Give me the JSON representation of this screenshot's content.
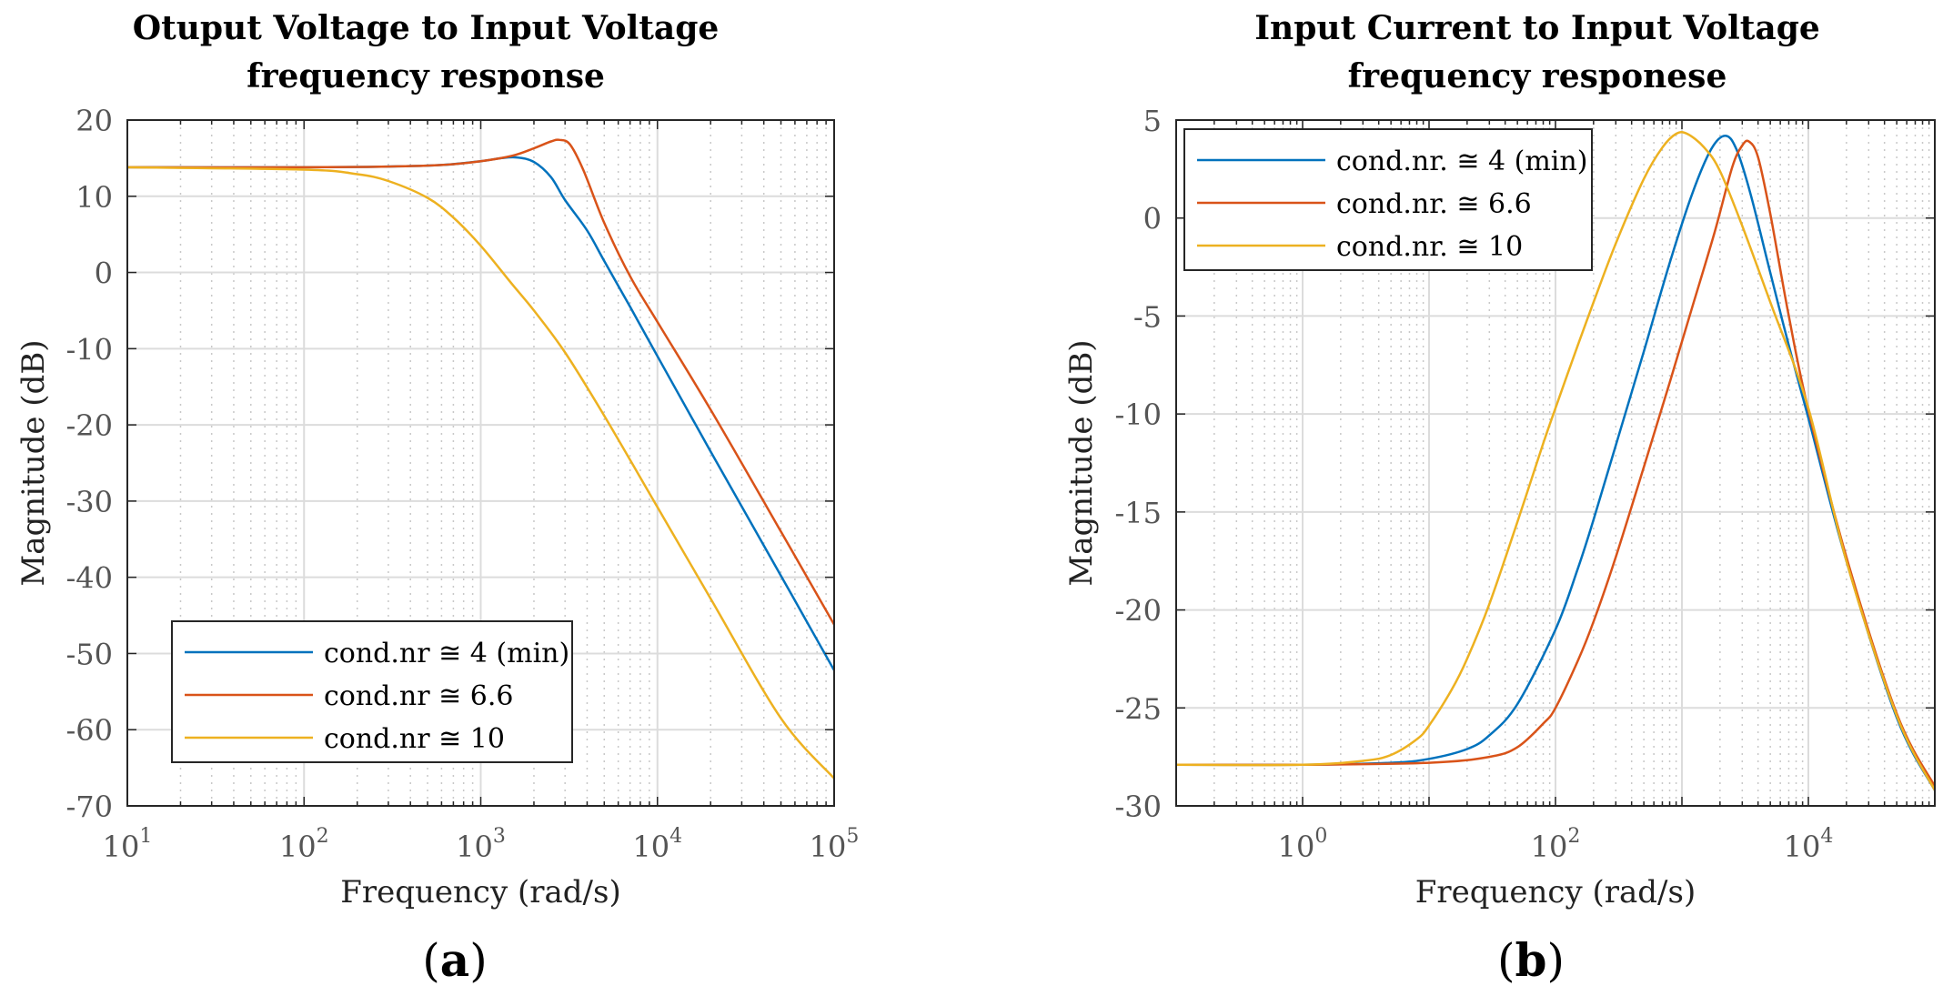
{
  "chart_data": [
    {
      "type": "line",
      "panel": "a",
      "subcaption_letter": "a",
      "title_lines": [
        "Otuput Voltage to Input Voltage",
        "frequency response"
      ],
      "xlabel": "Frequency  (rad/s)",
      "ylabel": "Magnitude (dB)",
      "xscale": "log",
      "xlim": [
        10,
        100000
      ],
      "ylim": [
        -70,
        20
      ],
      "xticks": [
        {
          "value": 10,
          "base": "10",
          "exp": "1"
        },
        {
          "value": 100,
          "base": "10",
          "exp": "2"
        },
        {
          "value": 1000,
          "base": "10",
          "exp": "3"
        },
        {
          "value": 10000,
          "base": "10",
          "exp": "4"
        },
        {
          "value": 100000,
          "base": "10",
          "exp": "5"
        }
      ],
      "yticks": [
        {
          "value": 20,
          "label": "20"
        },
        {
          "value": 10,
          "label": "10"
        },
        {
          "value": 0,
          "label": "0"
        },
        {
          "value": -10,
          "label": "-10"
        },
        {
          "value": -20,
          "label": "-20"
        },
        {
          "value": -30,
          "label": "-30"
        },
        {
          "value": -40,
          "label": "-40"
        },
        {
          "value": -50,
          "label": "-50"
        },
        {
          "value": -60,
          "label": "-60"
        },
        {
          "value": -70,
          "label": "-70"
        }
      ],
      "grid": true,
      "legend_position": "bottom-left",
      "series": [
        {
          "name": "cond.nr ≅ 4 (min)",
          "color": "#0072BD",
          "x": [
            10,
            100,
            300,
            600,
            1000,
            1300,
            1600,
            2000,
            2500,
            3000,
            4000,
            5000,
            7000,
            10000,
            20000,
            50000,
            100000
          ],
          "y": [
            13.8,
            13.8,
            13.9,
            14.1,
            14.6,
            15.0,
            15.1,
            14.5,
            12.5,
            9.5,
            5.5,
            1.5,
            -4.5,
            -11.0,
            -23.5,
            -39.8,
            -52.2
          ]
        },
        {
          "name": "cond.nr ≅  6.6",
          "color": "#D95319",
          "x": [
            10,
            100,
            300,
            600,
            1000,
            1500,
            2000,
            2500,
            2800,
            3200,
            3800,
            5000,
            7000,
            10000,
            20000,
            50000,
            100000
          ],
          "y": [
            13.8,
            13.8,
            13.9,
            14.1,
            14.6,
            15.3,
            16.3,
            17.2,
            17.4,
            16.8,
            13.5,
            6.5,
            -0.5,
            -6.5,
            -18.0,
            -34.0,
            -46.2
          ]
        },
        {
          "name": "cond.nr ≅  10",
          "color": "#EDB120",
          "x": [
            10,
            100,
            200,
            300,
            500,
            700,
            1000,
            1500,
            2000,
            3000,
            5000,
            10000,
            20000,
            50000,
            100000
          ],
          "y": [
            13.8,
            13.5,
            12.9,
            12.0,
            9.8,
            7.2,
            3.5,
            -1.5,
            -5.0,
            -10.5,
            -18.8,
            -30.8,
            -42.8,
            -58.5,
            -66.4
          ]
        }
      ]
    },
    {
      "type": "line",
      "panel": "b",
      "subcaption_letter": "b",
      "title_lines": [
        "Input Current to Input Voltage",
        "frequency responese"
      ],
      "xlabel": "Frequency  (rad/s)",
      "ylabel": "Magnitude (dB)",
      "xscale": "log",
      "xlim": [
        0.1,
        100000
      ],
      "ylim": [
        -30,
        5
      ],
      "xticks": [
        {
          "value": 1,
          "base": "10",
          "exp": "0"
        },
        {
          "value": 100,
          "base": "10",
          "exp": "2"
        },
        {
          "value": 10000,
          "base": "10",
          "exp": "4"
        }
      ],
      "yticks": [
        {
          "value": 5,
          "label": "5"
        },
        {
          "value": 0,
          "label": "0"
        },
        {
          "value": -5,
          "label": "-5"
        },
        {
          "value": -10,
          "label": "-10"
        },
        {
          "value": -15,
          "label": "-15"
        },
        {
          "value": -20,
          "label": "-20"
        },
        {
          "value": -25,
          "label": "-25"
        },
        {
          "value": -30,
          "label": "-30"
        }
      ],
      "grid": true,
      "legend_position": "top-left",
      "series": [
        {
          "name": "cond.nr. ≅  4 (min)",
          "color": "#0072BD",
          "x": [
            0.1,
            1,
            5,
            10,
            20,
            30,
            50,
            100,
            150,
            200,
            300,
            500,
            800,
            1200,
            1700,
            2200,
            2700,
            3500,
            5000,
            7000,
            10000,
            20000,
            50000,
            100000
          ],
          "y": [
            -27.9,
            -27.9,
            -27.8,
            -27.6,
            -27.1,
            -26.4,
            -24.8,
            -21.0,
            -17.9,
            -15.4,
            -11.6,
            -6.8,
            -2.3,
            1.2,
            3.5,
            4.2,
            3.5,
            1.2,
            -2.8,
            -6.5,
            -10.2,
            -17.5,
            -25.5,
            -29.2
          ]
        },
        {
          "name": "cond.nr. ≅ 6.6",
          "color": "#D95319",
          "x": [
            0.1,
            1,
            10,
            30,
            50,
            80,
            100,
            150,
            200,
            300,
            500,
            800,
            1200,
            1800,
            2500,
            3000,
            3400,
            4000,
            5000,
            7000,
            10000,
            20000,
            50000,
            100000
          ],
          "y": [
            -27.9,
            -27.9,
            -27.8,
            -27.5,
            -27.0,
            -25.8,
            -25.0,
            -22.6,
            -20.6,
            -17.3,
            -12.7,
            -8.4,
            -4.6,
            -0.8,
            2.6,
            3.7,
            3.9,
            3.1,
            0.2,
            -5.0,
            -9.8,
            -17.3,
            -25.3,
            -29.0
          ]
        },
        {
          "name": "cond.nr. ≅ 10",
          "color": "#EDB120",
          "x": [
            0.1,
            1,
            3,
            5,
            8,
            10,
            15,
            20,
            30,
            50,
            80,
            100,
            150,
            200,
            300,
            500,
            700,
            900,
            1100,
            1500,
            2000,
            3000,
            5000,
            10000,
            20000,
            50000,
            100000
          ],
          "y": [
            -27.9,
            -27.9,
            -27.7,
            -27.4,
            -26.6,
            -25.9,
            -24.1,
            -22.5,
            -19.7,
            -15.5,
            -11.5,
            -9.7,
            -6.5,
            -4.3,
            -1.3,
            2.0,
            3.6,
            4.3,
            4.3,
            3.6,
            2.4,
            -0.4,
            -4.3,
            -9.7,
            -17.5,
            -25.4,
            -29.2
          ]
        }
      ]
    }
  ]
}
